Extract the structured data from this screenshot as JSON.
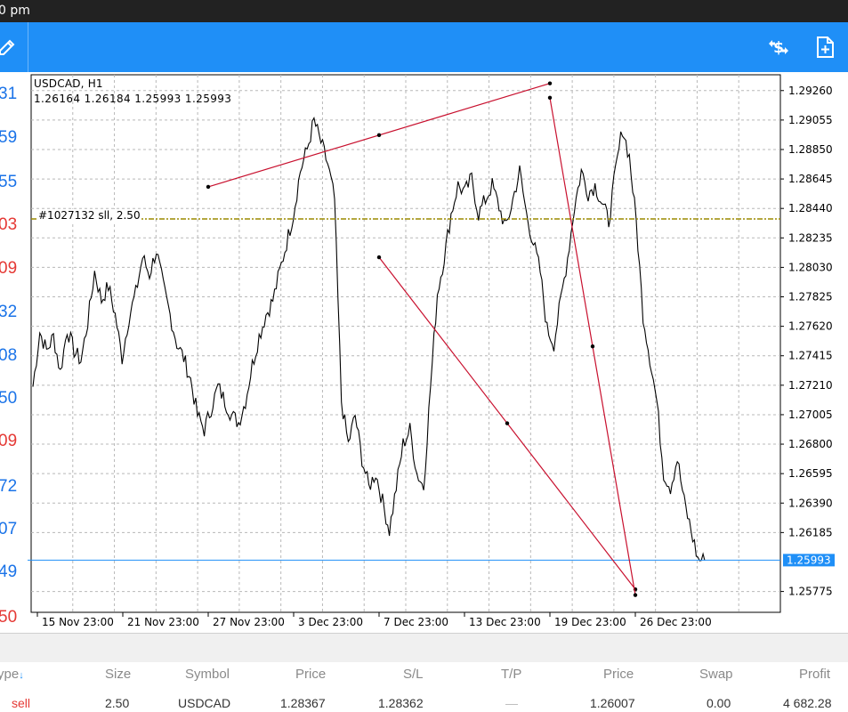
{
  "status_bar": {
    "time": "0 pm"
  },
  "toolbar": {
    "left_icon": "pencil-icon",
    "right_icons": [
      "currency-switch-icon",
      "new-order-icon"
    ]
  },
  "left_strip": {
    "values": [
      {
        "text": "31",
        "color": "#1a73e8"
      },
      {
        "text": "59",
        "color": "#1a73e8"
      },
      {
        "text": "55",
        "color": "#1a73e8"
      },
      {
        "text": "03",
        "color": "#e53935"
      },
      {
        "text": "09",
        "color": "#e53935"
      },
      {
        "text": "32",
        "color": "#1a73e8"
      },
      {
        "text": "08",
        "color": "#1a73e8"
      },
      {
        "text": "50",
        "color": "#1a73e8"
      },
      {
        "text": "09",
        "color": "#e53935"
      },
      {
        "text": "72",
        "color": "#1a73e8"
      },
      {
        "text": "07",
        "color": "#1a73e8"
      },
      {
        "text": "49",
        "color": "#1a73e8"
      },
      {
        "text": "50",
        "color": "#e53935"
      }
    ]
  },
  "chart": {
    "symbol_timeframe": "USDCAD, H1",
    "ohlc": "1.26164 1.26184 1.25993 1.25993",
    "order_label": "#1027132 sll, 2.50",
    "current_price": "1.25993",
    "colors": {
      "order_line": "#9b8a00",
      "price_line": "#1f8ff7",
      "trendline": "#c8102e",
      "price_badge": "#1f8ff7"
    }
  },
  "chart_data": {
    "type": "line",
    "title": "USDCAD, H1",
    "x_tick_labels": [
      "15 Nov 23:00",
      "21 Nov 23:00",
      "27 Nov 23:00",
      "3 Dec 23:00",
      "7 Dec 23:00",
      "13 Dec 23:00",
      "19 Dec 23:00",
      "26 Dec 23:00"
    ],
    "y_tick_labels": [
      "1.29260",
      "1.29055",
      "1.28850",
      "1.28645",
      "1.28440",
      "1.28235",
      "1.28030",
      "1.27825",
      "1.27620",
      "1.27415",
      "1.27210",
      "1.27005",
      "1.26800",
      "1.26595",
      "1.26390",
      "1.26185",
      "1.25775"
    ],
    "ylim": [
      1.2563,
      1.2937
    ],
    "close_series_approx": [
      1.272,
      1.2758,
      1.2745,
      1.2755,
      1.273,
      1.276,
      1.2745,
      1.2738,
      1.2765,
      1.28,
      1.278,
      1.279,
      1.277,
      1.274,
      1.2768,
      1.2785,
      1.281,
      1.2798,
      1.2815,
      1.279,
      1.277,
      1.275,
      1.274,
      1.2725,
      1.27,
      1.269,
      1.2705,
      1.272,
      1.271,
      1.27,
      1.2695,
      1.271,
      1.2735,
      1.2755,
      1.277,
      1.278,
      1.28,
      1.282,
      1.284,
      1.287,
      1.2885,
      1.2905,
      1.289,
      1.2875,
      1.285,
      1.271,
      1.268,
      1.27,
      1.267,
      1.265,
      1.266,
      1.264,
      1.262,
      1.265,
      1.268,
      1.269,
      1.266,
      1.265,
      1.272,
      1.2785,
      1.281,
      1.284,
      1.286,
      1.2855,
      1.2865,
      1.284,
      1.285,
      1.286,
      1.2845,
      1.283,
      1.285,
      1.287,
      1.284,
      1.282,
      1.28,
      1.276,
      1.275,
      1.278,
      1.281,
      1.2845,
      1.287,
      1.2855,
      1.286,
      1.2848,
      1.2835,
      1.287,
      1.29,
      1.288,
      1.2835,
      1.277,
      1.274,
      1.271,
      1.266,
      1.265,
      1.267,
      1.264,
      1.262,
      1.26,
      1.2599
    ],
    "horizontal_lines": [
      {
        "label": "#1027132 sll, 2.50",
        "value": 1.28367,
        "style": "dash-dot"
      },
      {
        "label": "1.25993",
        "value": 1.25993,
        "style": "solid"
      }
    ],
    "trendlines": [
      {
        "from": [
          "27 Nov 23:00",
          1.2859
        ],
        "to": [
          "19 Dec 23:00",
          1.2931
        ]
      },
      {
        "from": [
          "7 Dec 23:00",
          1.281
        ],
        "to": [
          "26 Dec 23:00",
          1.2579
        ]
      },
      {
        "from": [
          "19 Dec 23:00",
          1.2921
        ],
        "to": [
          "26 Dec 23:00",
          1.2575
        ]
      }
    ],
    "grid": true
  },
  "positions_table": {
    "headers": {
      "type": "ype",
      "size": "Size",
      "symbol": "Symbol",
      "price": "Price",
      "sl": "S/L",
      "tp": "T/P",
      "current_price": "Price",
      "swap": "Swap",
      "profit": "Profit"
    },
    "row": {
      "type": "sell",
      "size": "2.50",
      "symbol": "USDCAD",
      "price": "1.28367",
      "sl": "1.28362",
      "tp": "—",
      "current_price": "1.26007",
      "swap": "0.00",
      "profit": "4 682.28"
    }
  }
}
